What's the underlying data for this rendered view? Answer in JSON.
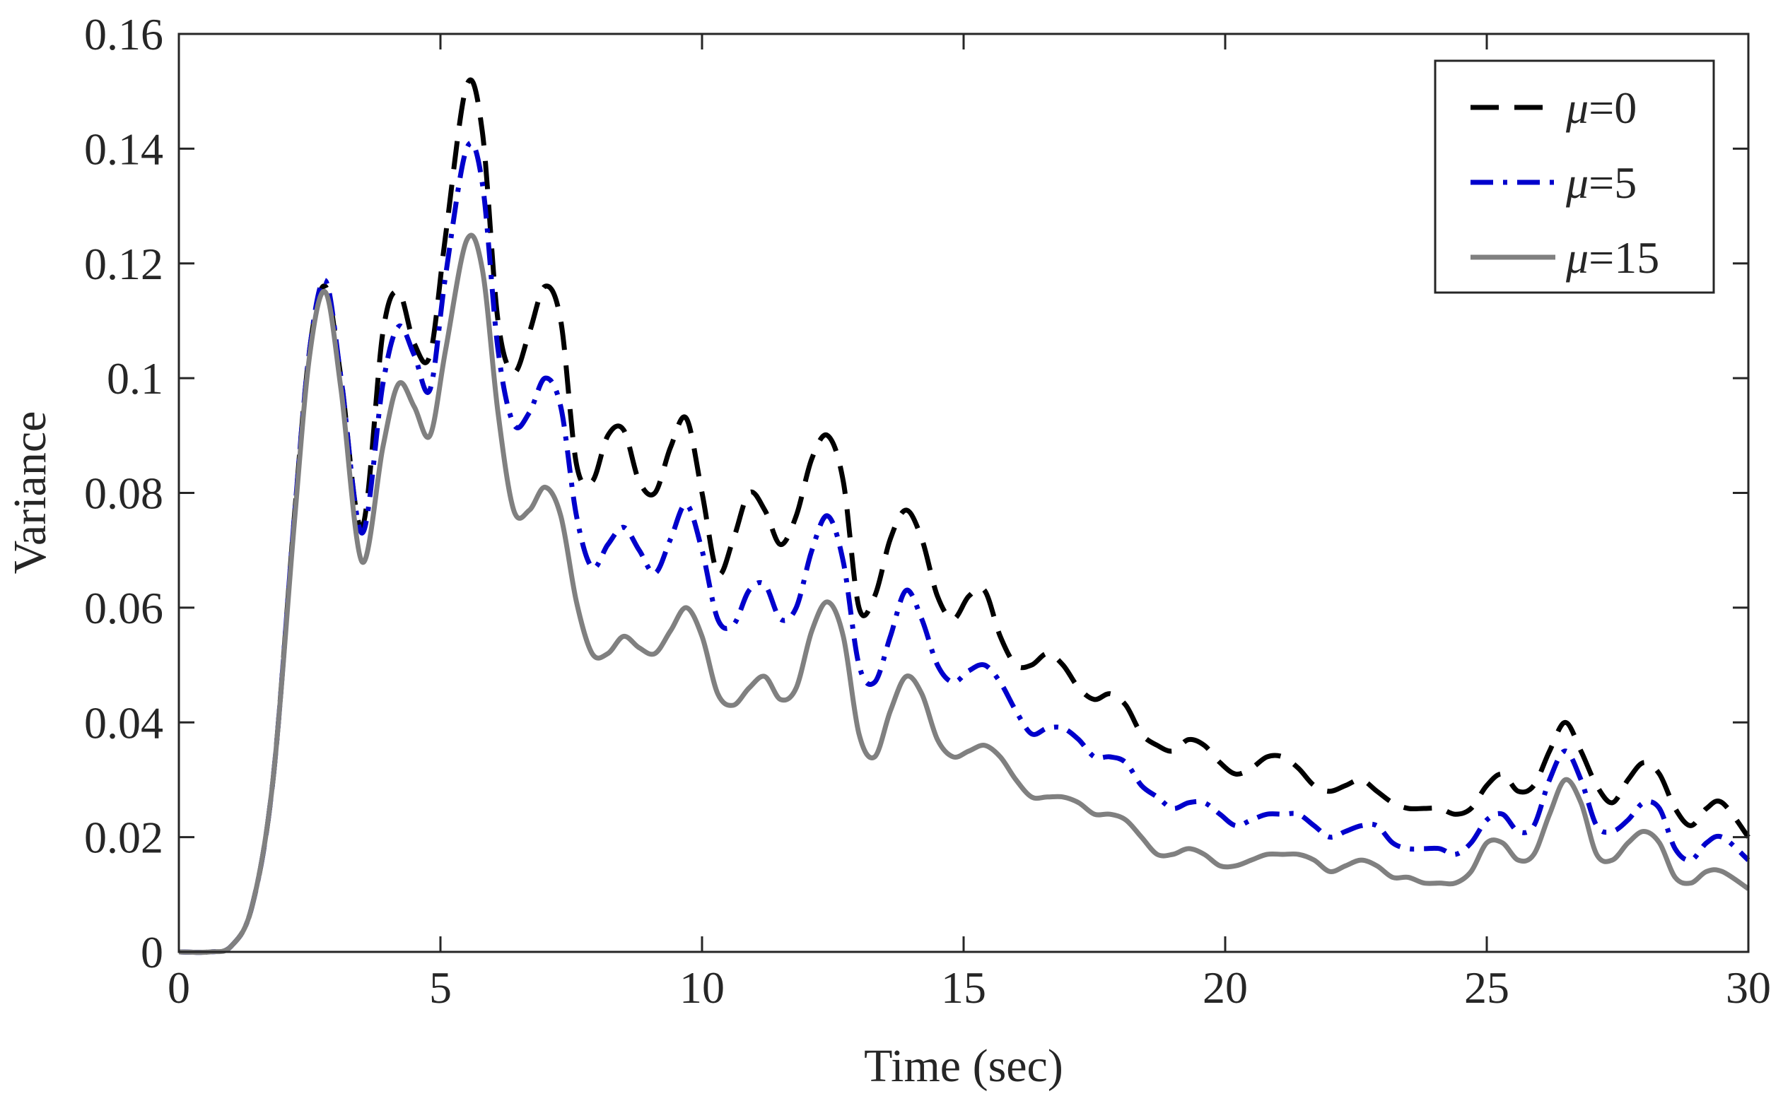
{
  "chart_data": {
    "type": "line",
    "title": "",
    "xlabel": "Time (sec)",
    "ylabel": "Variance",
    "xlim": [
      0,
      30
    ],
    "ylim": [
      0,
      0.16
    ],
    "xticks": [
      0,
      5,
      10,
      15,
      20,
      25,
      30
    ],
    "xtick_labels": [
      "0",
      "5",
      "10",
      "15",
      "20",
      "25",
      "30"
    ],
    "yticks": [
      0,
      0.02,
      0.04,
      0.06,
      0.08,
      0.1,
      0.12,
      0.14,
      0.16
    ],
    "ytick_labels": [
      "0",
      "0.02",
      "0.04",
      "0.06",
      "0.08",
      "0.1",
      "0.12",
      "0.14",
      "0.16"
    ],
    "grid": false,
    "legend_position": "top-right",
    "series": [
      {
        "name": "μ=0",
        "legend_symbol": "μ",
        "legend_suffix": "=0",
        "color": "#000000",
        "style": "dashed",
        "x": [
          0,
          0.6,
          1.0,
          1.4,
          1.8,
          2.2,
          2.5,
          2.8,
          3.1,
          3.5,
          3.9,
          4.2,
          4.5,
          4.8,
          5.1,
          5.5,
          5.8,
          6.1,
          6.4,
          6.7,
          7.0,
          7.3,
          7.6,
          7.9,
          8.2,
          8.5,
          8.8,
          9.1,
          9.4,
          9.7,
          10.0,
          10.3,
          10.6,
          10.9,
          11.2,
          11.5,
          11.8,
          12.1,
          12.4,
          12.7,
          13.0,
          13.3,
          13.6,
          13.9,
          14.2,
          14.5,
          14.8,
          15.1,
          15.4,
          15.7,
          16.0,
          16.3,
          16.6,
          16.9,
          17.2,
          17.5,
          17.8,
          18.1,
          18.4,
          18.7,
          19.0,
          19.3,
          19.6,
          19.9,
          20.2,
          20.5,
          20.8,
          21.1,
          21.4,
          21.7,
          22.0,
          22.3,
          22.6,
          22.9,
          23.2,
          23.5,
          23.8,
          24.1,
          24.4,
          24.7,
          25.0,
          25.3,
          25.6,
          25.9,
          26.2,
          26.5,
          26.8,
          27.1,
          27.4,
          27.7,
          28.0,
          28.3,
          28.6,
          28.9,
          29.2,
          29.5,
          30.0
        ],
        "y": [
          0,
          0,
          0.001,
          0.008,
          0.03,
          0.075,
          0.105,
          0.116,
          0.1,
          0.074,
          0.108,
          0.115,
          0.106,
          0.104,
          0.125,
          0.151,
          0.143,
          0.11,
          0.101,
          0.108,
          0.116,
          0.11,
          0.085,
          0.082,
          0.09,
          0.091,
          0.082,
          0.08,
          0.088,
          0.093,
          0.08,
          0.066,
          0.072,
          0.08,
          0.077,
          0.071,
          0.076,
          0.086,
          0.09,
          0.082,
          0.06,
          0.062,
          0.072,
          0.077,
          0.072,
          0.062,
          0.058,
          0.062,
          0.063,
          0.055,
          0.05,
          0.05,
          0.052,
          0.05,
          0.046,
          0.044,
          0.045,
          0.043,
          0.038,
          0.036,
          0.035,
          0.037,
          0.036,
          0.033,
          0.031,
          0.032,
          0.034,
          0.034,
          0.032,
          0.029,
          0.028,
          0.029,
          0.03,
          0.028,
          0.026,
          0.025,
          0.025,
          0.025,
          0.024,
          0.025,
          0.029,
          0.031,
          0.028,
          0.029,
          0.035,
          0.04,
          0.035,
          0.029,
          0.026,
          0.03,
          0.033,
          0.031,
          0.025,
          0.022,
          0.025,
          0.026,
          0.02
        ]
      },
      {
        "name": "μ=5",
        "legend_symbol": "μ",
        "legend_suffix": "=5",
        "color": "#0000cc",
        "style": "dashdot",
        "x": [
          0,
          0.6,
          1.0,
          1.4,
          1.8,
          2.2,
          2.5,
          2.8,
          3.1,
          3.5,
          3.9,
          4.2,
          4.5,
          4.8,
          5.1,
          5.5,
          5.8,
          6.1,
          6.4,
          6.7,
          7.0,
          7.3,
          7.6,
          7.9,
          8.2,
          8.5,
          8.8,
          9.1,
          9.4,
          9.7,
          10.0,
          10.3,
          10.6,
          10.9,
          11.2,
          11.5,
          11.8,
          12.1,
          12.4,
          12.7,
          13.0,
          13.3,
          13.6,
          13.9,
          14.2,
          14.5,
          14.8,
          15.1,
          15.4,
          15.7,
          16.0,
          16.3,
          16.6,
          16.9,
          17.2,
          17.5,
          17.8,
          18.1,
          18.4,
          18.7,
          19.0,
          19.3,
          19.6,
          19.9,
          20.2,
          20.5,
          20.8,
          21.1,
          21.4,
          21.7,
          22.0,
          22.3,
          22.6,
          22.9,
          23.2,
          23.5,
          23.8,
          24.1,
          24.4,
          24.7,
          25.0,
          25.3,
          25.6,
          25.9,
          26.2,
          26.5,
          26.8,
          27.1,
          27.4,
          27.7,
          28.0,
          28.3,
          28.6,
          28.9,
          29.2,
          29.5,
          30.0
        ],
        "y": [
          0,
          0,
          0.001,
          0.008,
          0.03,
          0.075,
          0.105,
          0.117,
          0.1,
          0.073,
          0.099,
          0.109,
          0.104,
          0.098,
          0.118,
          0.14,
          0.134,
          0.105,
          0.092,
          0.094,
          0.1,
          0.095,
          0.076,
          0.067,
          0.071,
          0.074,
          0.07,
          0.066,
          0.072,
          0.078,
          0.07,
          0.058,
          0.057,
          0.063,
          0.064,
          0.058,
          0.06,
          0.07,
          0.076,
          0.068,
          0.05,
          0.047,
          0.055,
          0.063,
          0.058,
          0.05,
          0.047,
          0.049,
          0.05,
          0.047,
          0.042,
          0.038,
          0.039,
          0.039,
          0.037,
          0.034,
          0.034,
          0.033,
          0.029,
          0.027,
          0.025,
          0.026,
          0.026,
          0.024,
          0.022,
          0.023,
          0.024,
          0.024,
          0.024,
          0.022,
          0.02,
          0.021,
          0.022,
          0.022,
          0.019,
          0.018,
          0.018,
          0.018,
          0.017,
          0.019,
          0.023,
          0.024,
          0.021,
          0.022,
          0.03,
          0.035,
          0.03,
          0.022,
          0.021,
          0.023,
          0.026,
          0.025,
          0.018,
          0.016,
          0.019,
          0.02,
          0.016
        ]
      },
      {
        "name": "μ=15",
        "legend_symbol": "μ",
        "legend_suffix": "=15",
        "color": "#808080",
        "style": "solid",
        "x": [
          0,
          0.6,
          1.0,
          1.4,
          1.8,
          2.2,
          2.5,
          2.8,
          3.1,
          3.5,
          3.9,
          4.2,
          4.5,
          4.8,
          5.1,
          5.5,
          5.8,
          6.1,
          6.4,
          6.7,
          7.0,
          7.3,
          7.6,
          7.9,
          8.2,
          8.5,
          8.8,
          9.1,
          9.4,
          9.7,
          10.0,
          10.3,
          10.6,
          10.9,
          11.2,
          11.5,
          11.8,
          12.1,
          12.4,
          12.7,
          13.0,
          13.3,
          13.6,
          13.9,
          14.2,
          14.5,
          14.8,
          15.1,
          15.4,
          15.7,
          16.0,
          16.3,
          16.6,
          16.9,
          17.2,
          17.5,
          17.8,
          18.1,
          18.4,
          18.7,
          19.0,
          19.3,
          19.6,
          19.9,
          20.2,
          20.5,
          20.8,
          21.1,
          21.4,
          21.7,
          22.0,
          22.3,
          22.6,
          22.9,
          23.2,
          23.5,
          23.8,
          24.1,
          24.4,
          24.7,
          25.0,
          25.3,
          25.6,
          25.9,
          26.2,
          26.5,
          26.8,
          27.1,
          27.4,
          27.7,
          28.0,
          28.3,
          28.6,
          28.9,
          29.2,
          29.5,
          30.0
        ],
        "y": [
          0,
          0,
          0.001,
          0.008,
          0.03,
          0.074,
          0.104,
          0.115,
          0.098,
          0.068,
          0.088,
          0.099,
          0.095,
          0.09,
          0.105,
          0.124,
          0.119,
          0.094,
          0.077,
          0.077,
          0.081,
          0.076,
          0.061,
          0.052,
          0.052,
          0.055,
          0.053,
          0.052,
          0.056,
          0.06,
          0.055,
          0.045,
          0.043,
          0.046,
          0.048,
          0.044,
          0.046,
          0.056,
          0.061,
          0.055,
          0.038,
          0.034,
          0.042,
          0.048,
          0.045,
          0.037,
          0.034,
          0.035,
          0.036,
          0.034,
          0.03,
          0.027,
          0.027,
          0.027,
          0.026,
          0.024,
          0.024,
          0.023,
          0.02,
          0.017,
          0.017,
          0.018,
          0.017,
          0.015,
          0.015,
          0.016,
          0.017,
          0.017,
          0.017,
          0.016,
          0.014,
          0.015,
          0.016,
          0.015,
          0.013,
          0.013,
          0.012,
          0.012,
          0.012,
          0.014,
          0.019,
          0.019,
          0.016,
          0.017,
          0.024,
          0.03,
          0.026,
          0.017,
          0.016,
          0.019,
          0.021,
          0.019,
          0.013,
          0.012,
          0.014,
          0.014,
          0.011
        ]
      }
    ]
  }
}
